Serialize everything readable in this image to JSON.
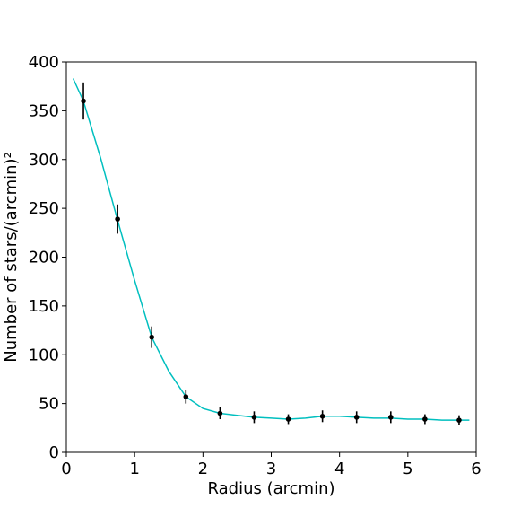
{
  "chart_data": {
    "type": "scatter",
    "title": "",
    "xlabel": "Radius (arcmin)",
    "ylabel": "Number of stars/(arcmin)²",
    "xlim": [
      0,
      6
    ],
    "ylim": [
      0,
      400
    ],
    "xticks": [
      0,
      1,
      2,
      3,
      4,
      5,
      6
    ],
    "yticks": [
      0,
      50,
      100,
      150,
      200,
      250,
      300,
      350,
      400
    ],
    "grid": false,
    "legend": "none",
    "points": {
      "color": "#000000",
      "x": [
        0.25,
        0.75,
        1.25,
        1.75,
        2.25,
        2.75,
        3.25,
        3.75,
        4.25,
        4.75,
        5.25,
        5.75
      ],
      "y": [
        360,
        239,
        118,
        57,
        40,
        36,
        34,
        37,
        36,
        36,
        34,
        33
      ],
      "yerr": [
        19,
        15,
        11,
        7,
        6,
        6,
        5,
        6,
        6,
        6,
        5,
        5
      ]
    },
    "fit_curve": {
      "color": "#00bfbf",
      "x": [
        0.1,
        0.25,
        0.5,
        0.75,
        1.0,
        1.25,
        1.5,
        1.75,
        2.0,
        2.25,
        2.5,
        2.75,
        3.0,
        3.25,
        3.5,
        3.75,
        4.0,
        4.25,
        4.5,
        4.75,
        5.0,
        5.25,
        5.5,
        5.75,
        5.9
      ],
      "y": [
        383,
        360,
        302,
        238,
        176,
        118,
        83,
        57,
        45,
        40,
        38,
        36,
        35,
        34,
        35,
        37,
        37,
        36,
        35,
        35,
        34,
        34,
        33,
        33,
        33
      ]
    }
  }
}
